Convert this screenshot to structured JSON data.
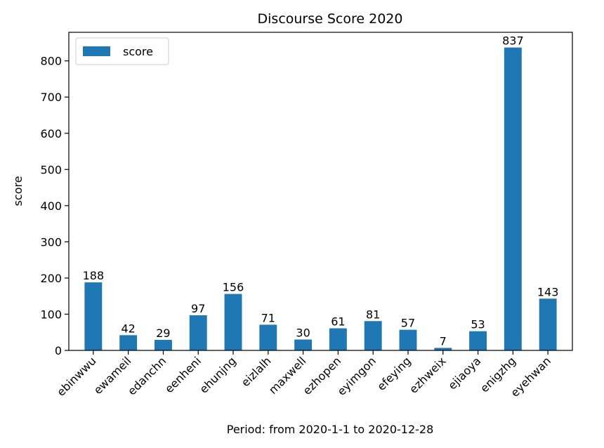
{
  "chart_data": {
    "type": "bar",
    "title": "Discourse Score 2020",
    "xlabel": "Period: from 2020-1-1 to 2020-12-28",
    "ylabel": "score",
    "categories": [
      "ebinwwu",
      "ewameil",
      "edanchn",
      "eenheni",
      "ehunjng",
      "eizlalh",
      "maxwell",
      "ezhopen",
      "eyimgon",
      "efeying",
      "ezhweix",
      "ejiaoya",
      "enigzhg",
      "eyehwan"
    ],
    "series": [
      {
        "name": "score",
        "values": [
          188,
          42,
          29,
          97,
          156,
          71,
          30,
          61,
          81,
          57,
          7,
          53,
          837,
          143
        ]
      }
    ],
    "ylim": [
      0,
      879
    ],
    "yticks": [
      0,
      100,
      200,
      300,
      400,
      500,
      600,
      700,
      800
    ],
    "legend_position": "top-left",
    "grid": false,
    "bar_color": "#1f77b4"
  }
}
